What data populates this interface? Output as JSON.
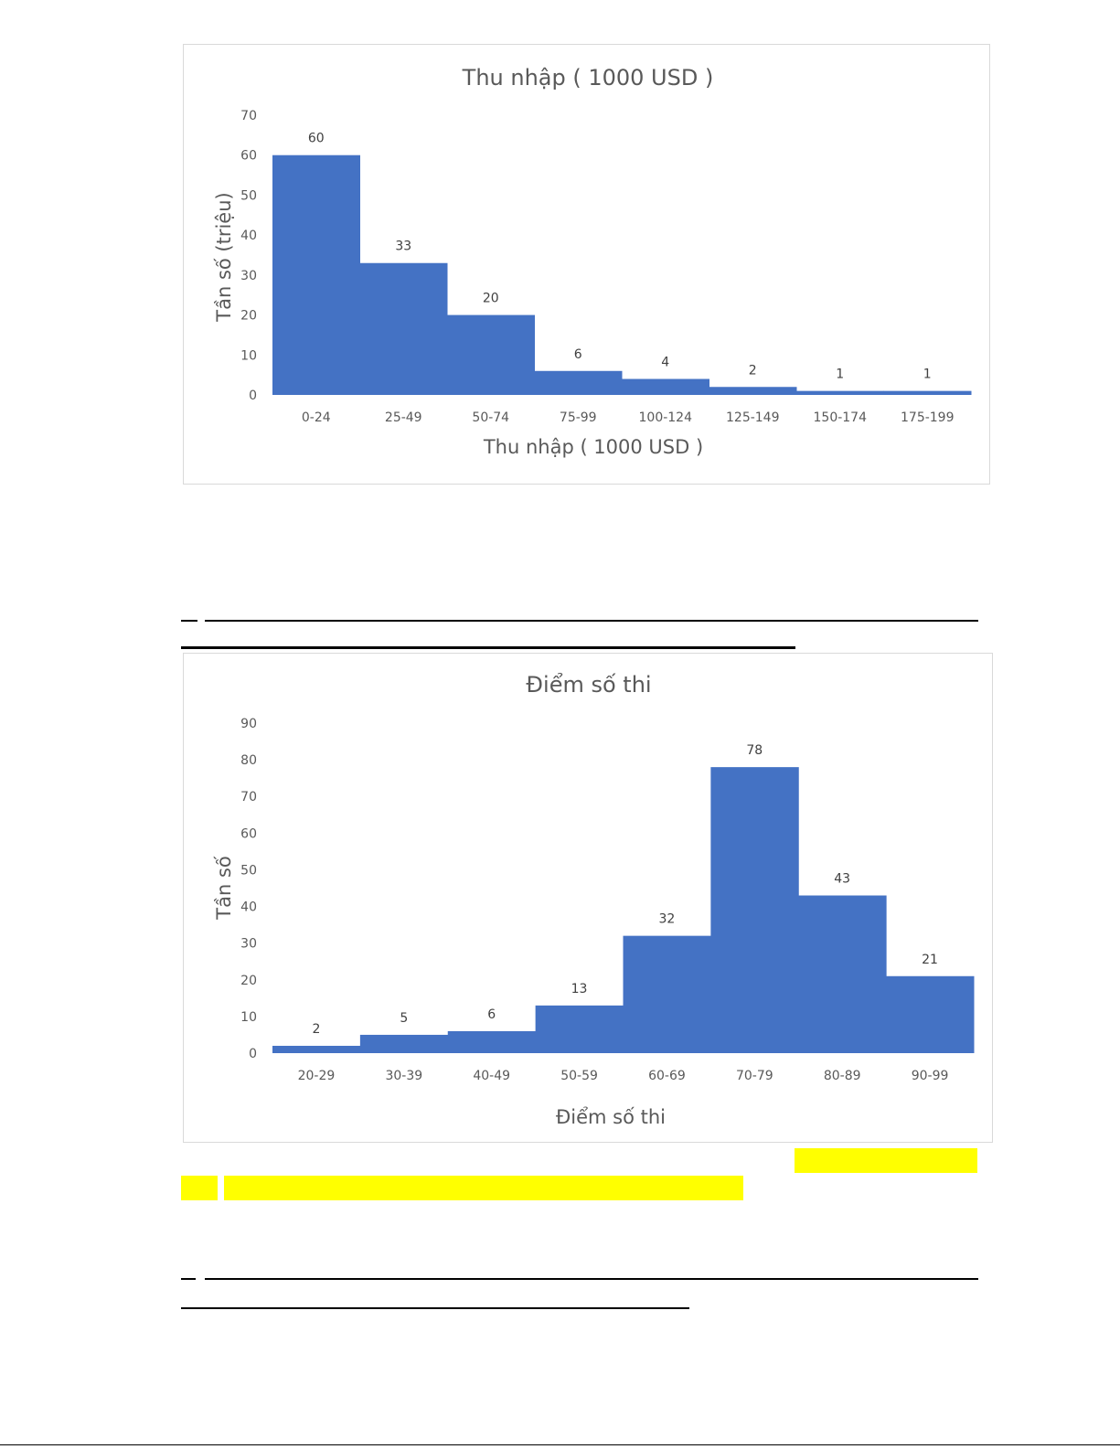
{
  "highlight_color": "#ffff00",
  "bar_color": "#4472c4",
  "chart_data": [
    {
      "type": "bar",
      "title": "Thu nhập ( 1000 USD )",
      "xlabel": "Thu nhập ( 1000 USD )",
      "ylabel": "Tần số (triệu)",
      "categories": [
        "0-24",
        "25-49",
        "50-74",
        "75-99",
        "100-124",
        "125-149",
        "150-174",
        "175-199"
      ],
      "values": [
        60,
        33,
        20,
        6,
        4,
        2,
        1,
        1
      ],
      "data_labels": [
        "60",
        "33",
        "20",
        "6",
        "4",
        "2",
        "1",
        "1"
      ],
      "yticks": [
        0,
        10,
        20,
        30,
        40,
        50,
        60,
        70
      ],
      "ylim": [
        0,
        70
      ],
      "grid": false,
      "legend": "none",
      "color": "#4472c4"
    },
    {
      "type": "bar",
      "title": "Điểm số thi",
      "xlabel": "Điểm số thi",
      "ylabel": "Tần số",
      "categories": [
        "20-29",
        "30-39",
        "40-49",
        "50-59",
        "60-69",
        "70-79",
        "80-89",
        "90-99"
      ],
      "values": [
        2,
        5,
        6,
        13,
        32,
        78,
        43,
        21
      ],
      "data_labels": [
        "2",
        "5",
        "6",
        "13",
        "32",
        "78",
        "43",
        "21"
      ],
      "yticks": [
        0,
        10,
        20,
        30,
        40,
        50,
        60,
        70,
        80,
        90
      ],
      "ylim": [
        0,
        90
      ],
      "grid": false,
      "legend": "none",
      "color": "#4472c4"
    }
  ]
}
